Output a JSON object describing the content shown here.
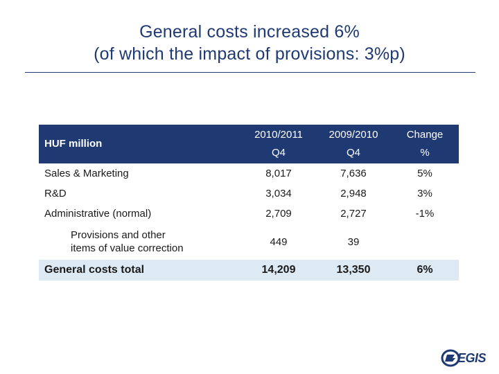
{
  "slide": {
    "title_line1": "General costs increased 6%",
    "title_line2": "(of which the impact of provisions: 3%p)"
  },
  "table": {
    "header": {
      "label": "HUF million",
      "col1_line1": "2010/2011",
      "col1_line2": "Q4",
      "col2_line1": "2009/2010",
      "col2_line2": "Q4",
      "col3_line1": "Change",
      "col3_line2": "%"
    },
    "rows": [
      {
        "label": "Sales & Marketing",
        "v1": "8,017",
        "v2": "7,636",
        "chg": "5%"
      },
      {
        "label": "R&D",
        "v1": "3,034",
        "v2": "2,948",
        "chg": "3%"
      },
      {
        "label": "Administrative (normal)",
        "v1": "2,709",
        "v2": "2,727",
        "chg": "-1%"
      },
      {
        "label_line1": "Provisions and other",
        "label_line2": "items of value correction",
        "v1": "449",
        "v2": "39",
        "chg": ""
      }
    ],
    "total": {
      "label": "General costs total",
      "v1": "14,209",
      "v2": "13,350",
      "chg": "6%"
    }
  },
  "logo": {
    "text": "EGIS",
    "icon": "egis-logo-icon",
    "color": "#1f3a73"
  }
}
